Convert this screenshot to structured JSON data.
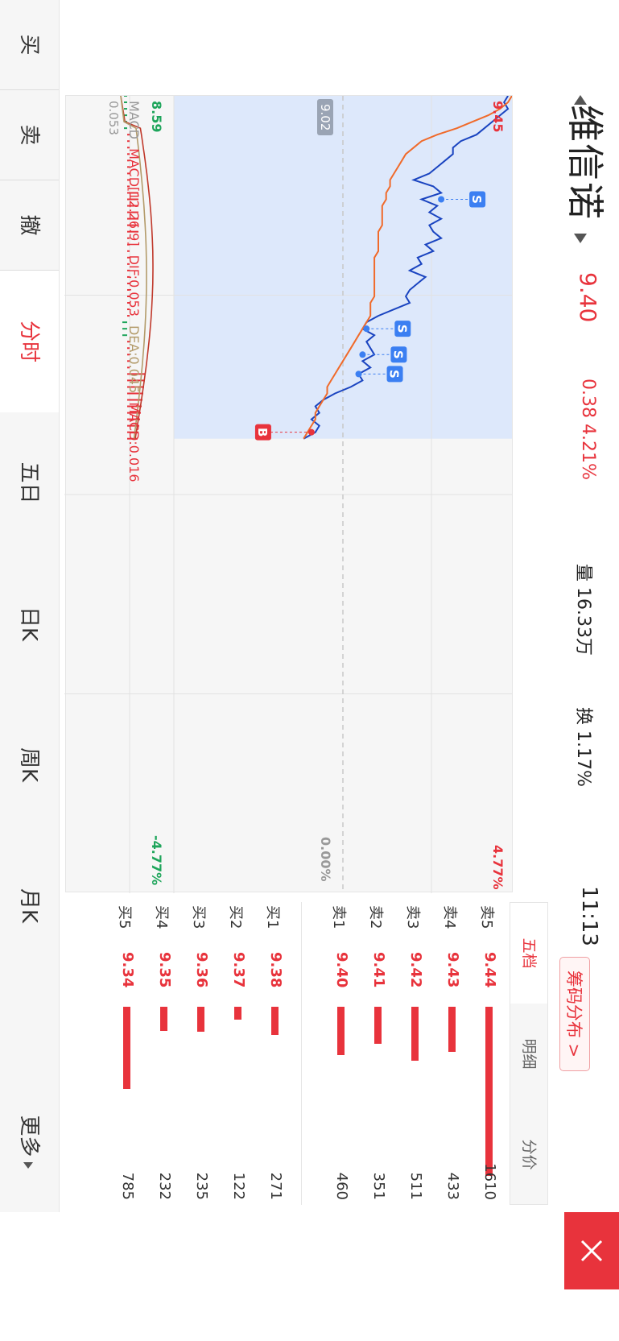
{
  "header": {
    "name": "维信诺",
    "price": "9.40",
    "change": "0.38 4.21%",
    "volume": "量 16.33万",
    "turnover": "换 1.17%",
    "time": "11:13",
    "chips_button": "筹码分布 >"
  },
  "chart": {
    "y_high": "9.45",
    "y_low": "8.59",
    "pct_high": "4.77%",
    "pct_low": "-4.77%",
    "pct_mid": "0.00%",
    "prev_close": "9.02",
    "macd_zero": "0.053",
    "macd_labels": [
      "MACD",
      "MACD[12.26.9]",
      "DIF:0.053",
      "DEA:0.045",
      "MACD:0.016"
    ],
    "markers": [
      "S",
      "S",
      "S",
      "S",
      "B"
    ]
  },
  "chart_data": {
    "type": "line",
    "title": "",
    "xlabel": "",
    "ylabel": "",
    "ylim": [
      8.59,
      9.45
    ],
    "series": [
      {
        "values": [
          9.44,
          9.43,
          9.44,
          9.42,
          9.4,
          9.38,
          9.36,
          9.32,
          9.3,
          9.3,
          9.28,
          9.26,
          9.24,
          9.2,
          9.25,
          9.27,
          9.22,
          9.26,
          9.24,
          9.27,
          9.24,
          9.25,
          9.27,
          9.23,
          9.25,
          9.21,
          9.22,
          9.19,
          9.23,
          9.21,
          9.19,
          9.18,
          9.19,
          9.15,
          9.11,
          9.08,
          9.07,
          9.1,
          9.08,
          9.09,
          9.1,
          9.07,
          9.09,
          9.06,
          9.07,
          9.04,
          9.0,
          8.97,
          8.95,
          8.96,
          8.94,
          8.96,
          8.95,
          8.92
        ]
      },
      {
        "values": [
          9.45,
          9.44,
          9.42,
          9.39,
          9.35,
          9.31,
          9.26,
          9.22,
          9.2,
          9.18,
          9.17,
          9.16,
          9.15,
          9.14,
          9.14,
          9.13,
          9.13,
          9.12,
          9.12,
          9.12,
          9.12,
          9.11,
          9.11,
          9.11,
          9.11,
          9.1,
          9.1,
          9.1,
          9.1,
          9.1,
          9.1,
          9.1,
          9.09,
          9.09,
          9.09,
          9.08,
          9.07,
          9.06,
          9.05,
          9.04,
          9.03,
          9.02,
          9.01,
          9.0,
          8.99,
          8.98,
          8.98,
          8.97,
          8.96,
          8.95,
          8.95,
          8.94,
          8.93,
          8.92
        ]
      }
    ]
  },
  "order_book": {
    "tabs": [
      "五档",
      "明细",
      "分价"
    ],
    "asks": [
      {
        "label": "卖5",
        "price": "9.44",
        "volume": "1610"
      },
      {
        "label": "卖4",
        "price": "9.43",
        "volume": "433"
      },
      {
        "label": "卖3",
        "price": "9.42",
        "volume": "511"
      },
      {
        "label": "卖2",
        "price": "9.41",
        "volume": "351"
      },
      {
        "label": "卖1",
        "price": "9.40",
        "volume": "460"
      }
    ],
    "bids": [
      {
        "label": "买1",
        "price": "9.38",
        "volume": "271"
      },
      {
        "label": "买2",
        "price": "9.37",
        "volume": "122"
      },
      {
        "label": "买3",
        "price": "9.36",
        "volume": "235"
      },
      {
        "label": "买4",
        "price": "9.35",
        "volume": "232"
      },
      {
        "label": "买5",
        "price": "9.34",
        "volume": "785"
      }
    ]
  },
  "tabs": [
    "买",
    "卖",
    "撤",
    "分时",
    "五日",
    "日K",
    "周K",
    "月K",
    "更多"
  ],
  "colors": {
    "accent": "#e8333c",
    "price_line": "#1a44c0",
    "avg_line": "#f06a2a",
    "down": "#1ea55b"
  }
}
